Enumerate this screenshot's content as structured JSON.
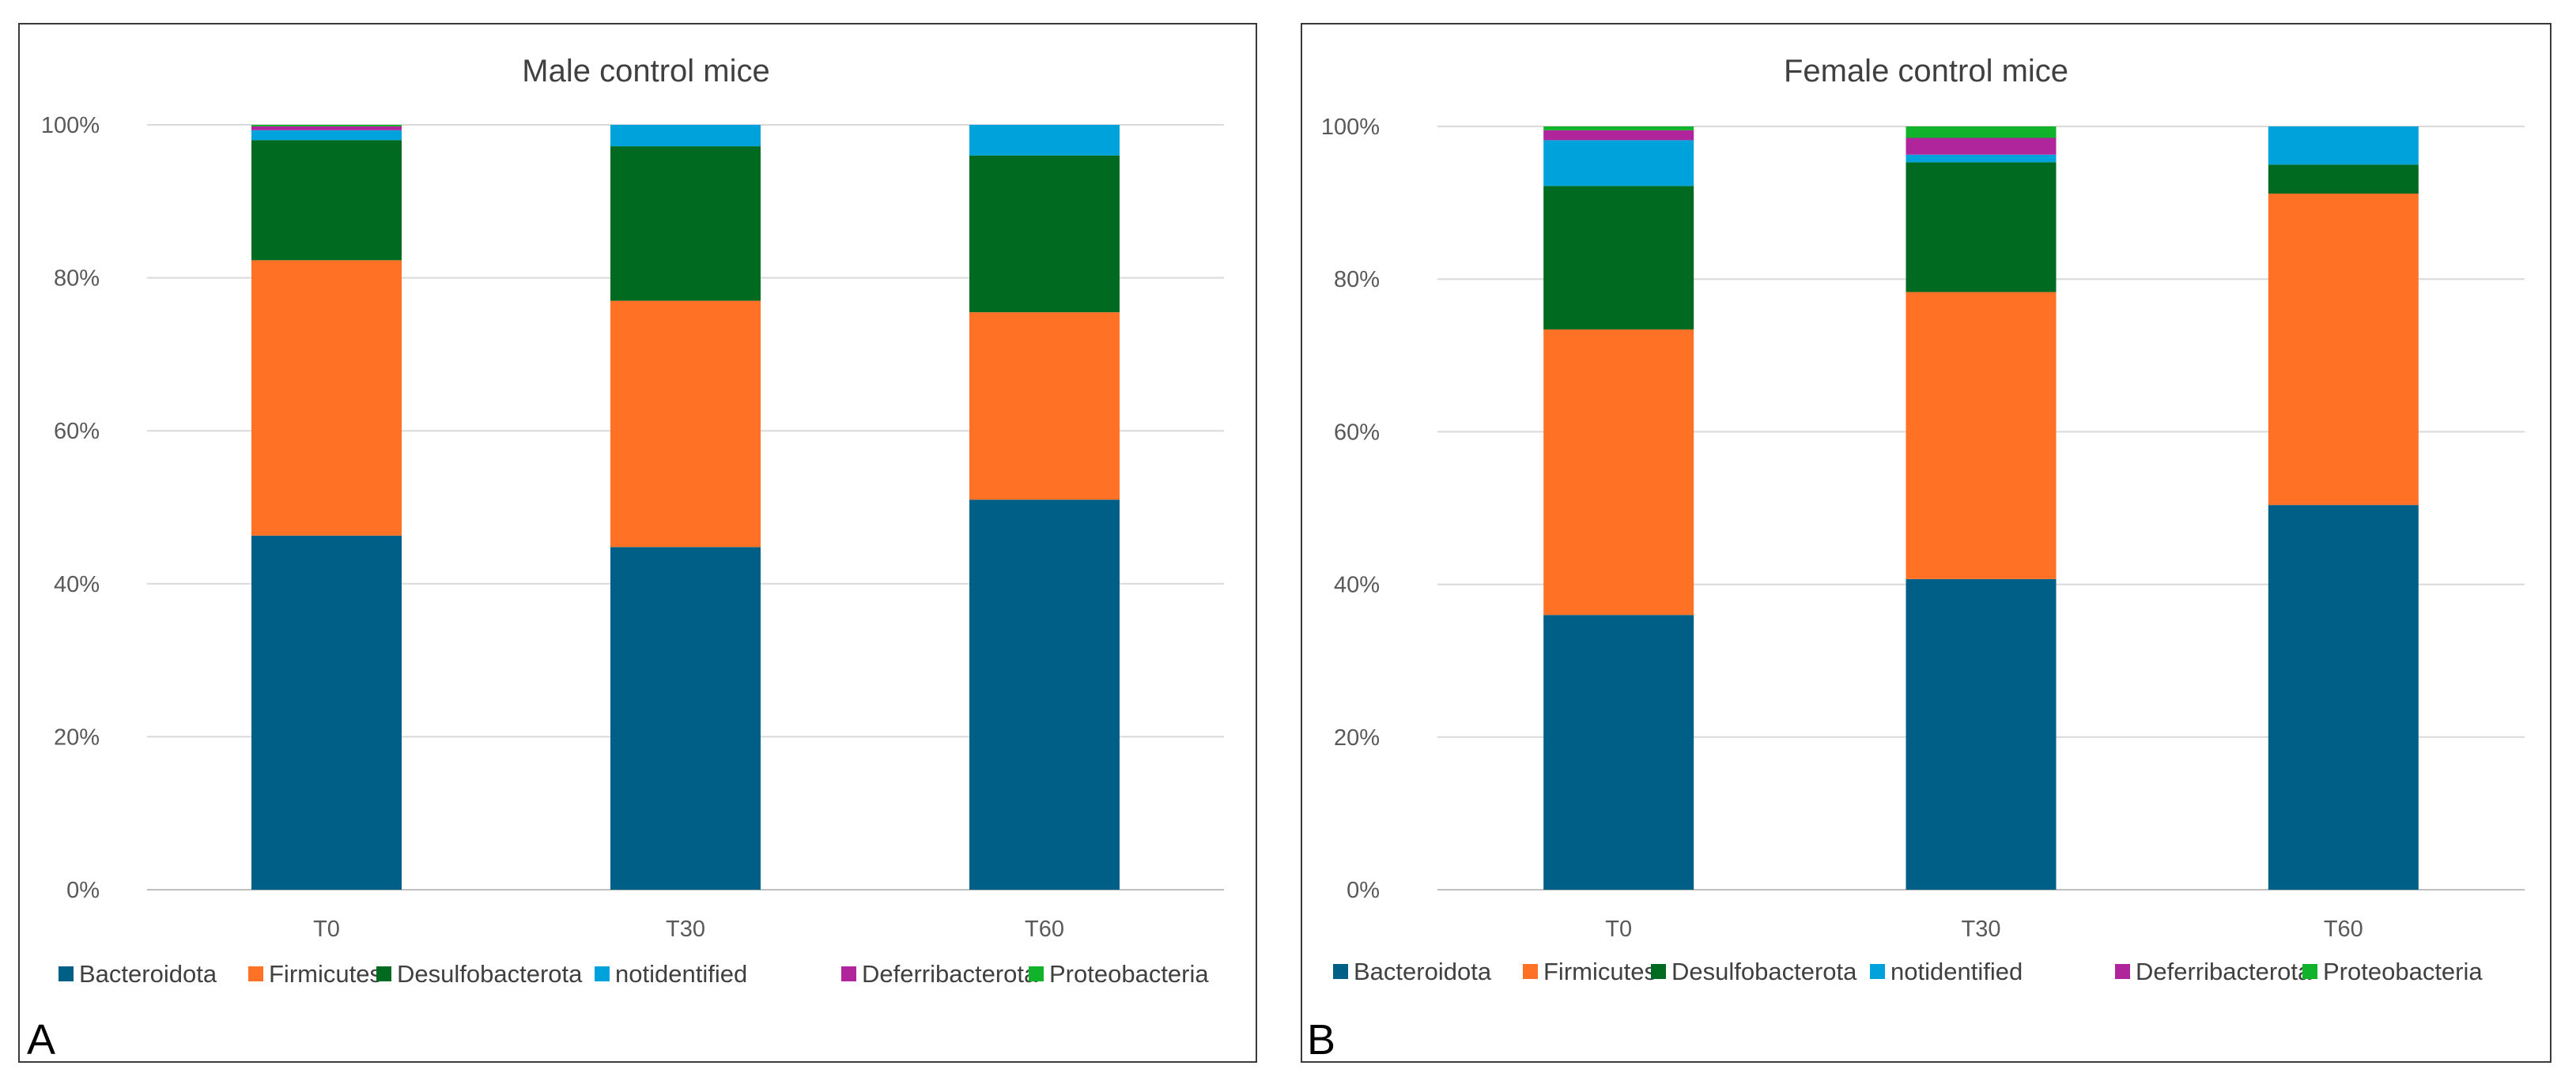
{
  "chart_data": [
    {
      "type": "bar",
      "stacked": true,
      "panel_label": "A",
      "title": "Male control mice",
      "xlabel": "",
      "ylabel": "",
      "categories": [
        "T0",
        "T30",
        "T60"
      ],
      "ylim": [
        0,
        100
      ],
      "yticks": [
        0,
        20,
        40,
        60,
        80,
        100
      ],
      "ytick_labels": [
        "0%",
        "20%",
        "40%",
        "60%",
        "80%",
        "100%"
      ],
      "grid": true,
      "legend_position": "bottom",
      "series": [
        {
          "name": "Bacteroidota",
          "values": [
            46.3,
            44.8,
            51.0
          ]
        },
        {
          "name": "Firmicutes",
          "values": [
            36.0,
            32.2,
            24.5
          ]
        },
        {
          "name": "Desulfobacterota",
          "values": [
            15.7,
            20.2,
            20.5
          ]
        },
        {
          "name": "notidentified",
          "values": [
            1.3,
            2.8,
            4.0
          ]
        },
        {
          "name": "Deferribacterota",
          "values": [
            0.5,
            0.0,
            0.0
          ]
        },
        {
          "name": "Proteobacteria",
          "values": [
            0.2,
            0.0,
            0.0
          ]
        }
      ]
    },
    {
      "type": "bar",
      "stacked": true,
      "panel_label": "B",
      "title": "Female control mice",
      "xlabel": "",
      "ylabel": "",
      "categories": [
        "T0",
        "T30",
        "T60"
      ],
      "ylim": [
        0,
        100
      ],
      "yticks": [
        0,
        20,
        40,
        60,
        80,
        100
      ],
      "ytick_labels": [
        "0%",
        "20%",
        "40%",
        "60%",
        "80%",
        "100%"
      ],
      "grid": true,
      "legend_position": "bottom",
      "series": [
        {
          "name": "Bacteroidota",
          "values": [
            36.0,
            40.7,
            50.4
          ]
        },
        {
          "name": "Firmicutes",
          "values": [
            37.4,
            37.6,
            40.8
          ]
        },
        {
          "name": "Desulfobacterota",
          "values": [
            18.8,
            17.0,
            3.8
          ]
        },
        {
          "name": "notidentified",
          "values": [
            6.0,
            1.0,
            5.0
          ]
        },
        {
          "name": "Deferribacterota",
          "values": [
            1.3,
            2.2,
            0.0
          ]
        },
        {
          "name": "Proteobacteria",
          "values": [
            0.5,
            1.5,
            0.0
          ]
        }
      ]
    }
  ],
  "colors": {
    "Bacteroidota": "#005f86",
    "Firmicutes": "#ff7226",
    "Desulfobacterota": "#006a21",
    "notidentified": "#00a2dc",
    "Deferribacterota": "#b0249c",
    "Proteobacteria": "#10b32a"
  }
}
